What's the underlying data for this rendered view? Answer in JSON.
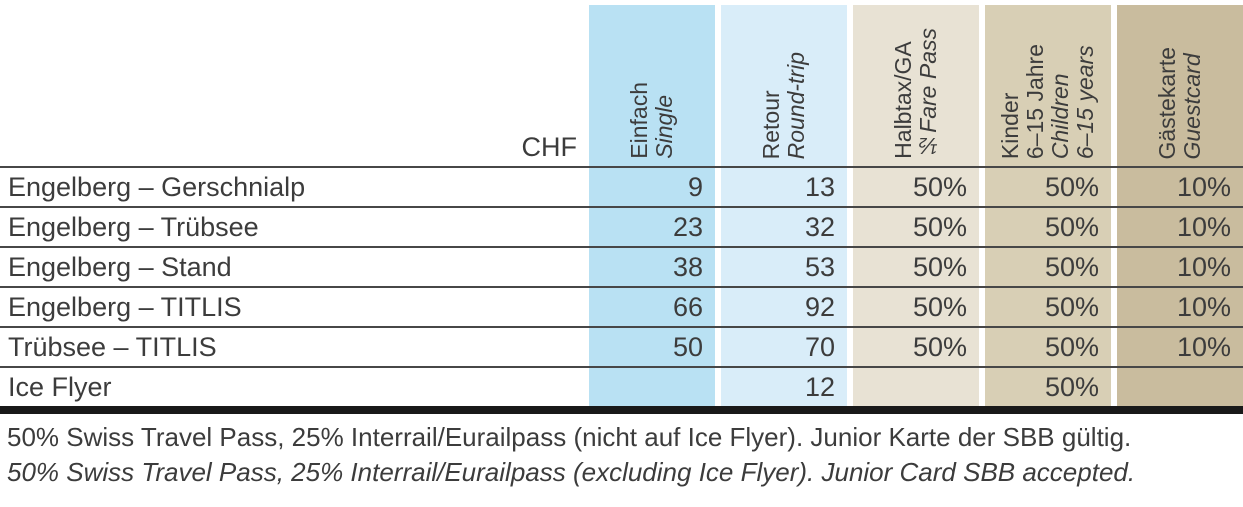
{
  "table": {
    "currency_label": "CHF",
    "columns": [
      {
        "name": "einfach-single",
        "de1": "Einfach",
        "en1": "Single",
        "bg": "#b9e1f3"
      },
      {
        "name": "retour-roundtrip",
        "de1": "Retour",
        "en1": "Round-trip",
        "bg": "#d9edf9"
      },
      {
        "name": "halbtax-ga",
        "de1": "Halbtax/GA",
        "en1": "½Fare Pass",
        "bg": "#e8e2d4"
      },
      {
        "name": "kinder-children",
        "de1": "Kinder",
        "de2": "6–15 Jahre",
        "en1": "Children",
        "en2": "6–15 years",
        "bg": "#d8cfb5"
      },
      {
        "name": "gaestekarte-guestcard",
        "de1": "Gästekarte",
        "en1": "Guestcard",
        "bg": "#c9bc9e"
      }
    ],
    "rows": [
      {
        "label": "Engelberg – Gerschnialp",
        "values": [
          "9",
          "13",
          "50%",
          "50%",
          "10%"
        ]
      },
      {
        "label": "Engelberg – Trübsee",
        "values": [
          "23",
          "32",
          "50%",
          "50%",
          "10%"
        ]
      },
      {
        "label": "Engelberg – Stand",
        "values": [
          "38",
          "53",
          "50%",
          "50%",
          "10%"
        ]
      },
      {
        "label": "Engelberg – TITLIS",
        "values": [
          "66",
          "92",
          "50%",
          "50%",
          "10%"
        ]
      },
      {
        "label": "Trübsee – TITLIS",
        "values": [
          "50",
          "70",
          "50%",
          "50%",
          "10%"
        ]
      },
      {
        "label": "Ice Flyer",
        "values": [
          "",
          "12",
          "",
          "50%",
          ""
        ]
      }
    ],
    "footnote_de": "50% Swiss Travel Pass, 25% Interrail/Eurailpass (nicht auf Ice Flyer). Junior Karte der SBB gültig.",
    "footnote_en": "50% Swiss Travel Pass, 25% Interrail/Eurailpass (excluding Ice Flyer). Junior Card SBB accepted."
  }
}
